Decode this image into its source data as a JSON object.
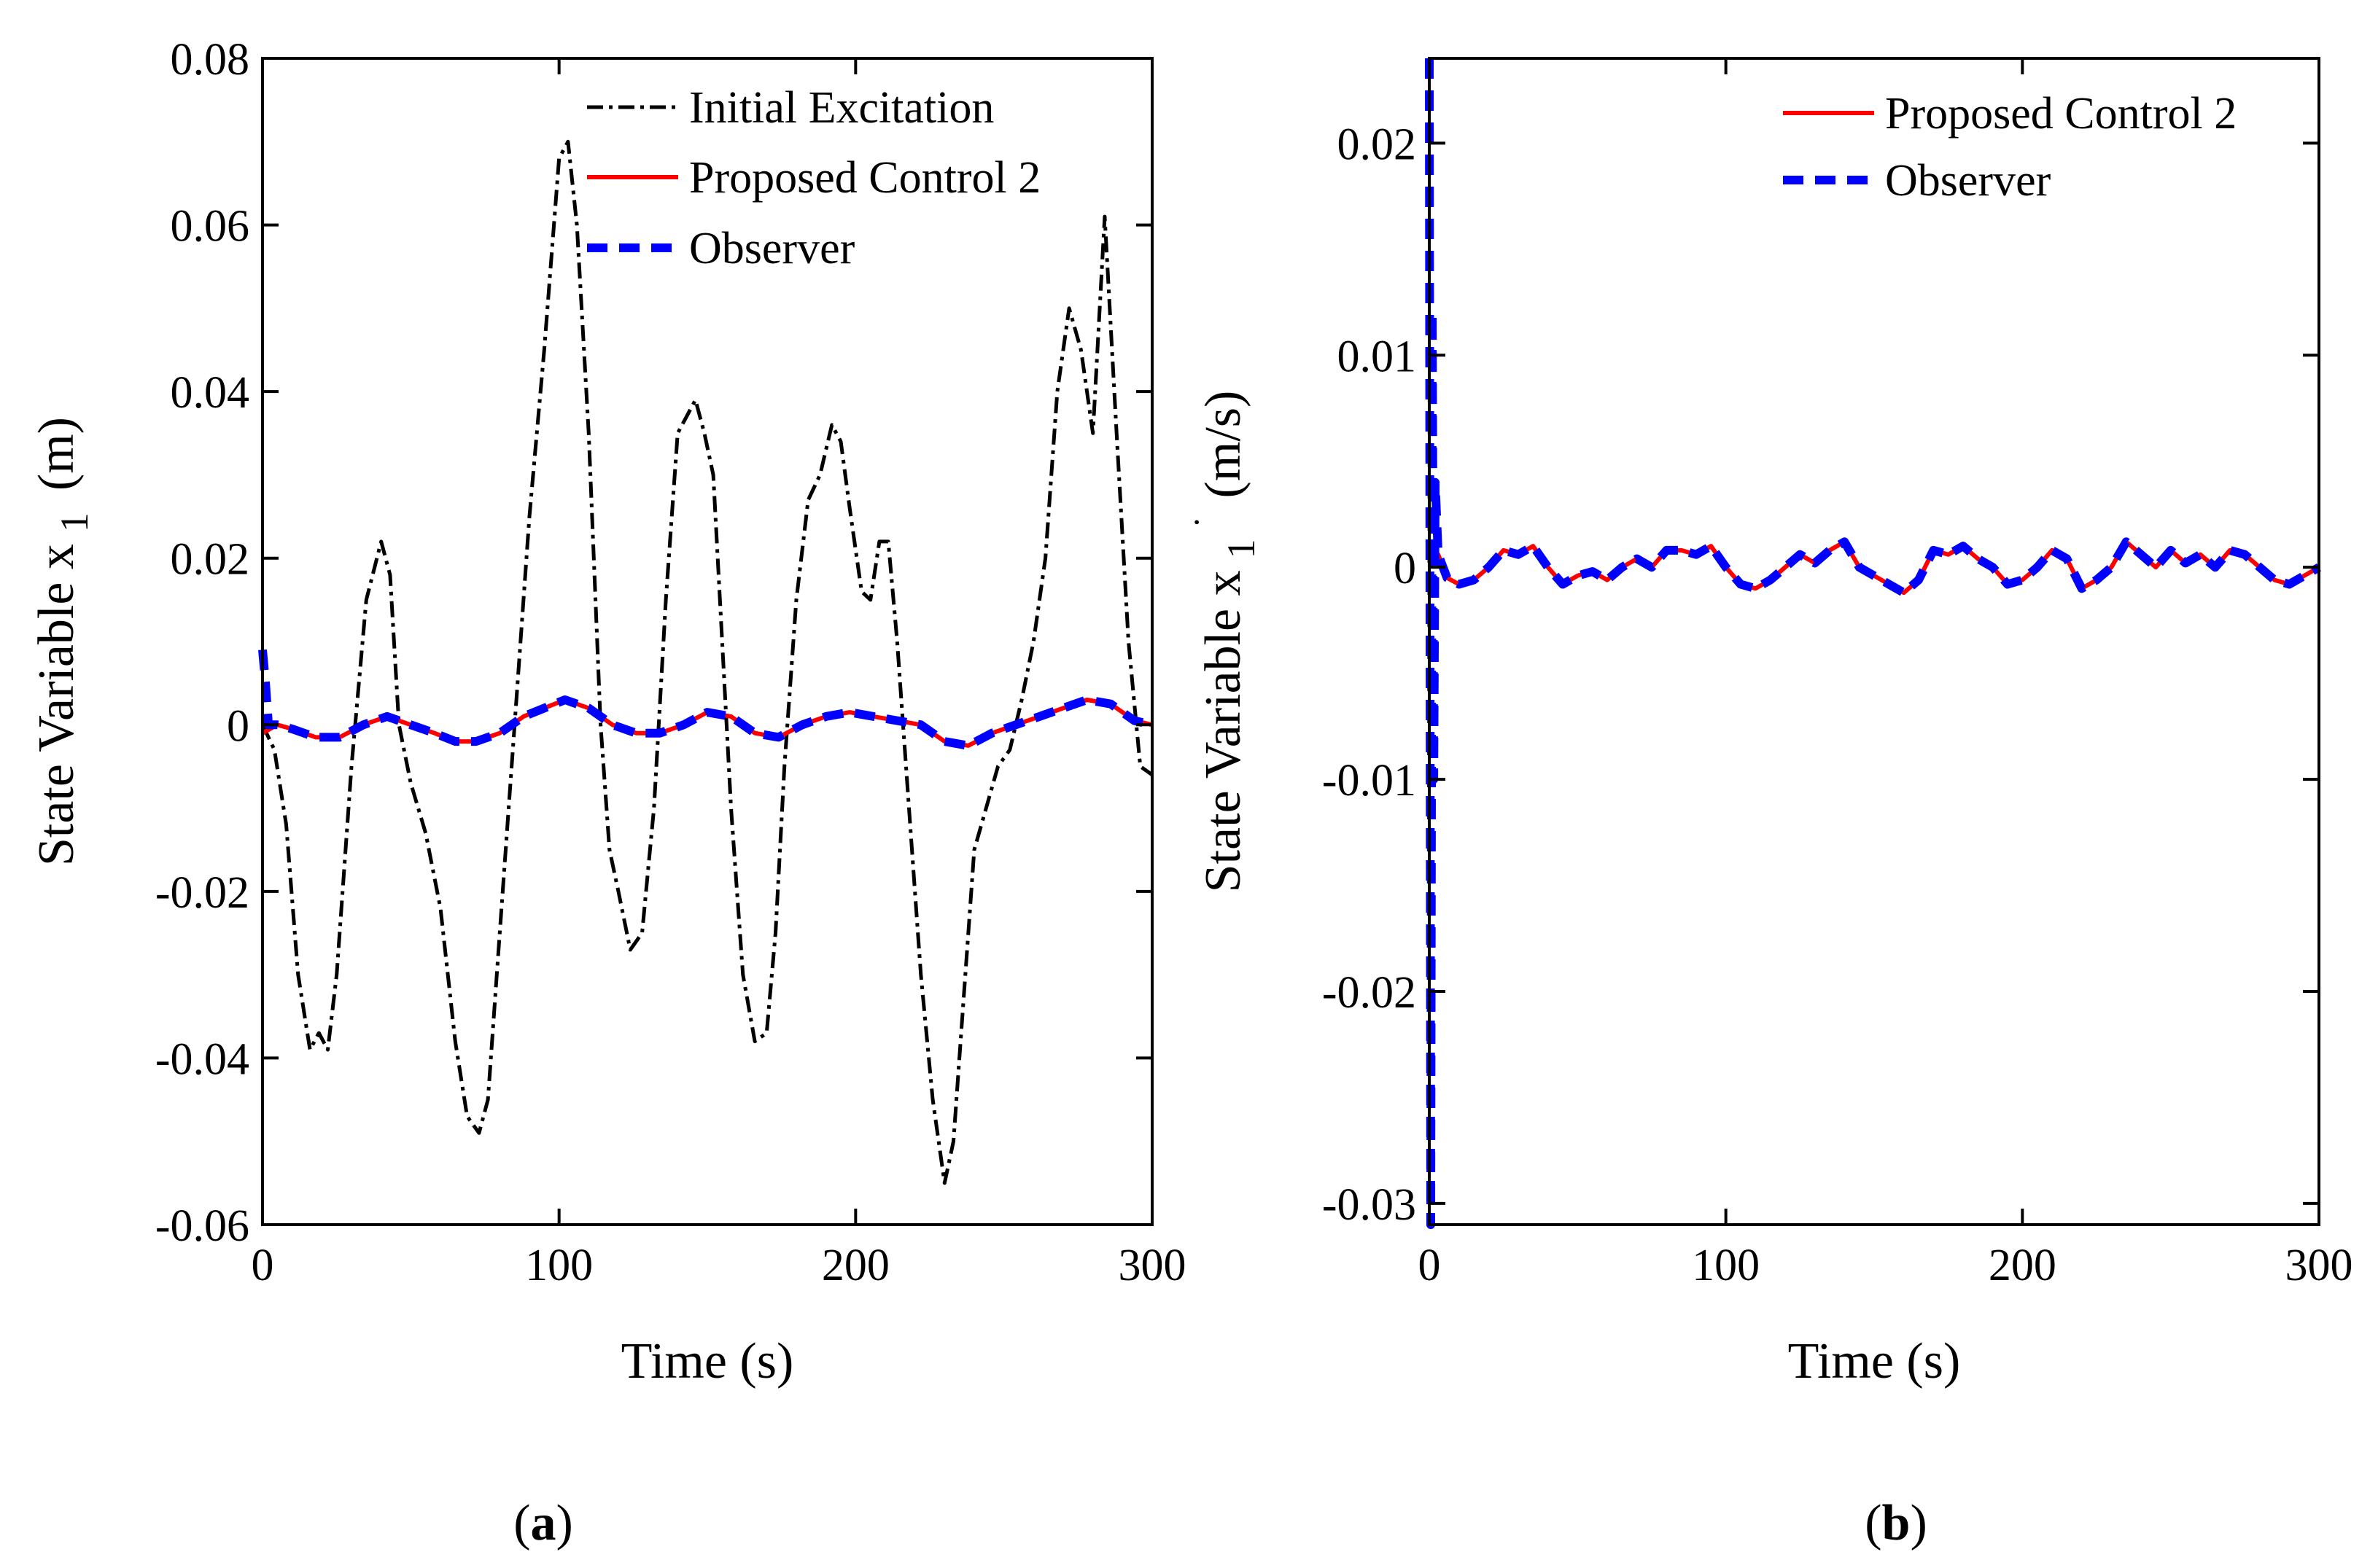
{
  "figure": {
    "panel_labels": [
      {
        "open": "(",
        "letter": "a",
        "close": ")"
      },
      {
        "open": "(",
        "letter": "b",
        "close": ")"
      }
    ]
  },
  "chart_data": [
    {
      "type": "line",
      "panel": "a",
      "title": "",
      "xlabel": "Time (s)",
      "ylabel": "State Variable x",
      "ylabel_subscript": "1",
      "ylabel_unit": "(m)",
      "xlim": [
        0,
        300
      ],
      "ylim": [
        -0.06,
        0.08
      ],
      "xticks": [
        0,
        100,
        200,
        300
      ],
      "xtick_labels": [
        "0",
        "100",
        "200",
        "300"
      ],
      "yticks": [
        -0.06,
        -0.04,
        -0.02,
        0,
        0.02,
        0.04,
        0.06,
        0.08
      ],
      "ytick_labels": [
        "-0.06",
        "-0.04",
        "-0.02",
        "0",
        "0.02",
        "0.04",
        "0.06",
        "0.08"
      ],
      "grid": false,
      "legend_position": "top-right",
      "series": [
        {
          "name": "Initial Excitation",
          "color": "#000000",
          "style": "dash-dot",
          "x": [
            0,
            4,
            8,
            12,
            16,
            19,
            22,
            25,
            30,
            35,
            40,
            43,
            46,
            50,
            55,
            60,
            65,
            69,
            73,
            76,
            80,
            85,
            90,
            95,
            100,
            103,
            106,
            110,
            114,
            117,
            120,
            124,
            128,
            132,
            136,
            140,
            143,
            146,
            149,
            152,
            155,
            158,
            162,
            166,
            170,
            173,
            176,
            180,
            184,
            188,
            192,
            195,
            198,
            202,
            205,
            208,
            211,
            214,
            218,
            222,
            226,
            230,
            233,
            236,
            240,
            244,
            248,
            252,
            256,
            260,
            264,
            268,
            272,
            276,
            280,
            284,
            288,
            292,
            296,
            300
          ],
          "y": [
            0,
            -0.003,
            -0.012,
            -0.03,
            -0.039,
            -0.037,
            -0.039,
            -0.03,
            -0.005,
            0.015,
            0.022,
            0.018,
            0.0,
            -0.007,
            -0.013,
            -0.022,
            -0.038,
            -0.047,
            -0.049,
            -0.045,
            -0.025,
            0.0,
            0.025,
            0.045,
            0.068,
            0.07,
            0.06,
            0.035,
            0.0,
            -0.015,
            -0.02,
            -0.027,
            -0.025,
            -0.01,
            0.015,
            0.035,
            0.037,
            0.039,
            0.035,
            0.03,
            0.01,
            -0.01,
            -0.03,
            -0.038,
            -0.037,
            -0.025,
            -0.005,
            0.015,
            0.027,
            0.03,
            0.036,
            0.034,
            0.026,
            0.016,
            0.015,
            0.022,
            0.022,
            0.01,
            -0.01,
            -0.03,
            -0.045,
            -0.055,
            -0.05,
            -0.035,
            -0.015,
            -0.01,
            -0.005,
            -0.003,
            0.003,
            0.01,
            0.02,
            0.04,
            0.05,
            0.045,
            0.035,
            0.061,
            0.035,
            0.01,
            -0.005,
            -0.006
          ]
        },
        {
          "name": "Proposed Control 2",
          "color": "#ff0000",
          "style": "solid",
          "x": [
            0,
            5,
            10,
            18,
            26,
            34,
            42,
            50,
            58,
            65,
            72,
            80,
            88,
            95,
            102,
            110,
            118,
            126,
            134,
            142,
            150,
            158,
            166,
            174,
            182,
            190,
            198,
            206,
            214,
            222,
            230,
            238,
            246,
            254,
            262,
            270,
            278,
            286,
            294,
            300
          ],
          "y": [
            -0.001,
            0.0,
            -0.0005,
            -0.0015,
            -0.0015,
            0.0,
            0.001,
            0.0,
            -0.001,
            -0.002,
            -0.002,
            -0.001,
            0.001,
            0.002,
            0.003,
            0.002,
            0.0,
            -0.001,
            -0.001,
            0.0,
            0.0015,
            0.001,
            -0.001,
            -0.0015,
            0.0,
            0.001,
            0.0015,
            0.001,
            0.0005,
            0.0,
            -0.002,
            -0.0025,
            -0.001,
            0.0,
            0.001,
            0.002,
            0.003,
            0.0025,
            0.0005,
            0.0
          ]
        },
        {
          "name": "Observer",
          "color": "#0000ff",
          "style": "dashed",
          "x": [
            0,
            1,
            2,
            5,
            10,
            18,
            26,
            34,
            42,
            50,
            58,
            65,
            72,
            80,
            88,
            95,
            102,
            110,
            118,
            126,
            134,
            142,
            150,
            158,
            166,
            174,
            182,
            190,
            198,
            206,
            214,
            222,
            230,
            238,
            246,
            254,
            262,
            270,
            278,
            286,
            294,
            300
          ],
          "y": [
            0.009,
            0.005,
            0.0,
            0.0,
            -0.0005,
            -0.0015,
            -0.0015,
            0.0,
            0.001,
            0.0,
            -0.001,
            -0.002,
            -0.002,
            -0.001,
            0.001,
            0.002,
            0.003,
            0.002,
            0.0,
            -0.001,
            -0.001,
            0.0,
            0.0015,
            0.001,
            -0.001,
            -0.0015,
            0.0,
            0.001,
            0.0015,
            0.001,
            0.0005,
            0.0,
            -0.002,
            -0.0025,
            -0.001,
            0.0,
            0.001,
            0.002,
            0.003,
            0.0025,
            0.0005,
            0.0
          ]
        }
      ]
    },
    {
      "type": "line",
      "panel": "b",
      "title": "",
      "xlabel": "Time (s)",
      "ylabel": "State Variable x",
      "ylabel_subscript": "1",
      "ylabel_superscript": "˙",
      "ylabel_unit": "(m/s)",
      "xlim": [
        0,
        300
      ],
      "ylim": [
        -0.031,
        0.024
      ],
      "xticks": [
        0,
        100,
        200,
        300
      ],
      "xtick_labels": [
        "0",
        "100",
        "200",
        "300"
      ],
      "yticks": [
        -0.03,
        -0.02,
        -0.01,
        0,
        0.01,
        0.02
      ],
      "ytick_labels": [
        "-0.03",
        "-0.02",
        "-0.01",
        "0",
        "0.01",
        "0.02"
      ],
      "grid": false,
      "legend_position": "top-right",
      "series": [
        {
          "name": "Proposed Control 2",
          "color": "#ff0000",
          "style": "solid",
          "x": [
            0,
            3,
            6,
            10,
            15,
            20,
            25,
            30,
            35,
            40,
            45,
            50,
            55,
            60,
            65,
            70,
            75,
            80,
            85,
            90,
            95,
            100,
            105,
            110,
            115,
            120,
            125,
            130,
            135,
            140,
            145,
            150,
            155,
            160,
            165,
            170,
            175,
            180,
            185,
            190,
            195,
            200,
            205,
            210,
            215,
            220,
            225,
            230,
            235,
            240,
            245,
            250,
            255,
            260,
            265,
            270,
            275,
            280,
            285,
            290,
            295,
            300
          ],
          "y": [
            0.0,
            0.0006,
            -0.0005,
            -0.0008,
            -0.0006,
            0.0,
            0.0008,
            0.0006,
            0.001,
            0.0,
            -0.0008,
            -0.0004,
            -0.0002,
            -0.0006,
            0.0,
            0.0004,
            0.0,
            0.0008,
            0.0008,
            0.0006,
            0.001,
            0.0,
            -0.0008,
            -0.001,
            -0.0006,
            0.0,
            0.0006,
            0.0002,
            0.0008,
            0.0012,
            0.0,
            -0.0004,
            -0.0008,
            -0.0012,
            -0.0006,
            0.0008,
            0.0006,
            0.001,
            0.0004,
            0.0,
            -0.0008,
            -0.0006,
            0.0,
            0.0008,
            0.0004,
            -0.001,
            -0.0006,
            0.0,
            0.0012,
            0.0006,
            0.0,
            0.0008,
            0.0002,
            0.0006,
            0.0,
            0.0008,
            0.0006,
            0.0,
            -0.0006,
            -0.0008,
            -0.0004,
            0.0
          ]
        },
        {
          "name": "Observer",
          "color": "#0000ff",
          "style": "dashed",
          "x": [
            0,
            0.5,
            1,
            1.5,
            2,
            3,
            6,
            10,
            15,
            20,
            25,
            30,
            35,
            40,
            45,
            50,
            55,
            60,
            65,
            70,
            75,
            80,
            85,
            90,
            95,
            100,
            105,
            110,
            115,
            120,
            125,
            130,
            135,
            140,
            145,
            150,
            155,
            160,
            165,
            170,
            175,
            180,
            185,
            190,
            195,
            200,
            205,
            210,
            215,
            220,
            225,
            230,
            235,
            240,
            245,
            250,
            255,
            260,
            265,
            270,
            275,
            280,
            285,
            290,
            295,
            300
          ],
          "y": [
            0.024,
            -0.031,
            0.012,
            -0.01,
            0.004,
            0.0006,
            -0.0005,
            -0.0008,
            -0.0006,
            0.0,
            0.0008,
            0.0006,
            0.001,
            0.0,
            -0.0008,
            -0.0004,
            -0.0002,
            -0.0006,
            0.0,
            0.0004,
            0.0,
            0.0008,
            0.0008,
            0.0006,
            0.001,
            0.0,
            -0.0008,
            -0.001,
            -0.0006,
            0.0,
            0.0006,
            0.0002,
            0.0008,
            0.0012,
            0.0,
            -0.0004,
            -0.0008,
            -0.0012,
            -0.0006,
            0.0008,
            0.0006,
            0.001,
            0.0004,
            0.0,
            -0.0008,
            -0.0006,
            0.0,
            0.0008,
            0.0004,
            -0.001,
            -0.0006,
            0.0,
            0.0012,
            0.0006,
            0.0,
            0.0008,
            0.0002,
            0.0006,
            0.0,
            0.0008,
            0.0006,
            0.0,
            -0.0006,
            -0.0008,
            -0.0004,
            0.0
          ]
        }
      ]
    }
  ]
}
